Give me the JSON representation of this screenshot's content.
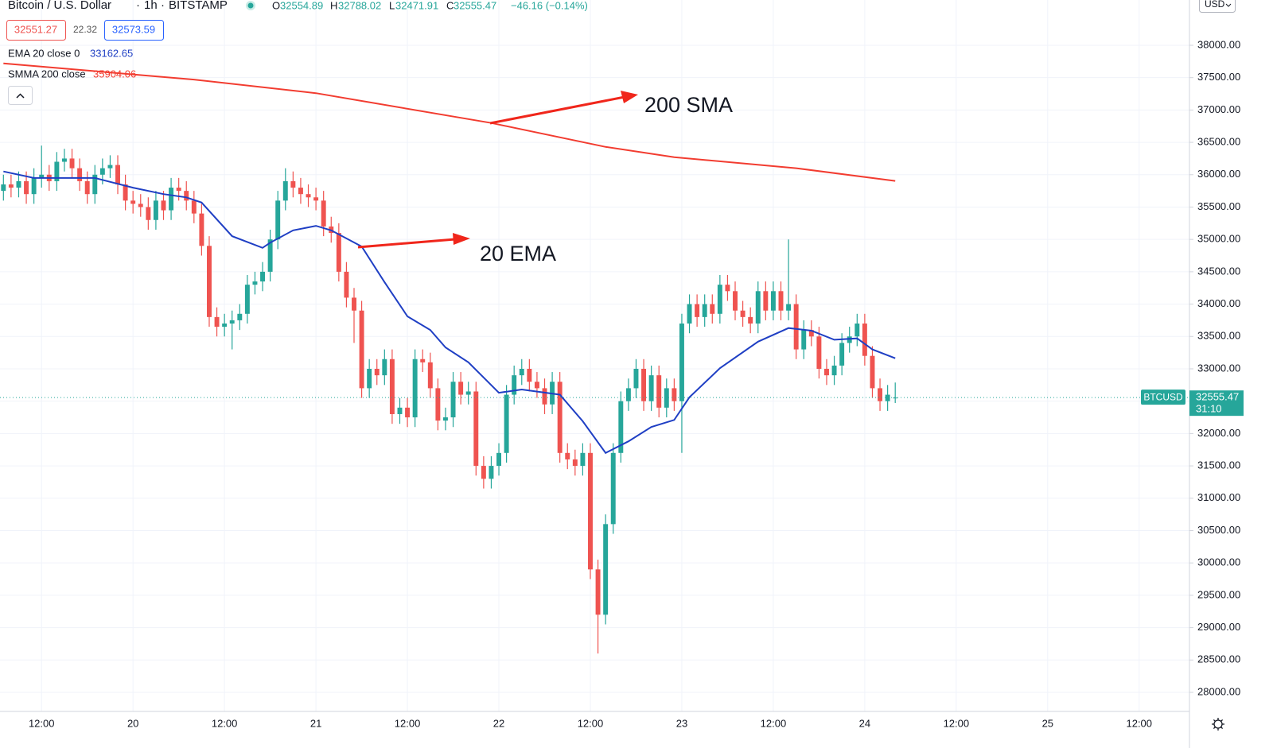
{
  "chart_data": {
    "type": "candlestick",
    "title": "Bitcoin / U.S. Dollar",
    "interval": "1h",
    "exchange": "BITSTAMP",
    "ohlc_labels": [
      "O",
      "H",
      "L",
      "C"
    ],
    "change_label": "−46.16 (−0.14%)",
    "quotes": {
      "bid": 32551.27,
      "spread": 22.32,
      "ask": 32573.59
    },
    "symbol": "BTCUSD",
    "countdown": "31:10",
    "currency": "USD",
    "up_color": "#26a69a",
    "down_color": "#ef5350",
    "open": [
      35750,
      35850,
      35800,
      35900,
      35700,
      35950,
      36000,
      35900,
      36200,
      36250,
      36100,
      35900,
      35700,
      36000,
      36100,
      36150,
      35850,
      35600,
      35550,
      35500,
      35300,
      35600,
      35450,
      35800,
      35750,
      35600,
      35400,
      34900,
      33800,
      33650,
      33700,
      33750,
      33850,
      34300,
      34350,
      34500,
      35000,
      35600,
      35900,
      35800,
      35700,
      35650,
      35600,
      35200,
      35100,
      34500,
      34100,
      33900,
      32700,
      33000,
      32900,
      33150,
      32300,
      32400,
      32250,
      33150,
      33100,
      32700,
      32200,
      32250,
      32800,
      32600,
      32650,
      31500,
      31300,
      31500,
      31700,
      32600,
      32900,
      33000,
      32800,
      32700,
      32450,
      32800,
      31700,
      31600,
      31500,
      31700,
      29900,
      29200,
      30600,
      31700,
      32500,
      32700,
      33000,
      32500,
      32900,
      32400,
      32700,
      32500,
      33700,
      34000,
      33800,
      34000,
      33850,
      34300,
      34200,
      33900,
      33800,
      33700,
      34200,
      33900,
      34200,
      33900,
      34000,
      33300,
      33600,
      33500,
      33000,
      32900,
      33050,
      33400,
      33500,
      33700,
      33200,
      32700,
      32500,
      32554.89
    ],
    "high": [
      36000,
      36000,
      36050,
      36050,
      36100,
      36450,
      36150,
      36350,
      36400,
      36400,
      36250,
      36050,
      36150,
      36250,
      36300,
      36300,
      36000,
      35750,
      35700,
      35650,
      35750,
      35750,
      35950,
      35950,
      35900,
      35750,
      35550,
      35050,
      33950,
      33850,
      33900,
      34000,
      34450,
      34500,
      34650,
      35150,
      35750,
      36100,
      36050,
      35950,
      35850,
      35800,
      35750,
      35350,
      35250,
      34650,
      34250,
      34050,
      33150,
      33150,
      33300,
      33300,
      32550,
      32550,
      33300,
      33300,
      33250,
      32850,
      32400,
      32950,
      32950,
      32800,
      32800,
      31650,
      31650,
      31850,
      32750,
      33050,
      33150,
      33150,
      32950,
      32850,
      32950,
      32950,
      31850,
      31750,
      31850,
      31850,
      30050,
      30750,
      31850,
      32650,
      32850,
      33150,
      33150,
      33050,
      33050,
      32850,
      32850,
      33850,
      34150,
      34150,
      34150,
      34150,
      34450,
      34450,
      34350,
      34050,
      33950,
      34350,
      34350,
      34350,
      34350,
      35000,
      34150,
      33750,
      33750,
      33650,
      33150,
      33200,
      33550,
      33650,
      33850,
      33850,
      33350,
      32850,
      32750,
      32788.02
    ],
    "low": [
      35600,
      35650,
      35650,
      35550,
      35550,
      35800,
      35750,
      35750,
      36050,
      35950,
      35750,
      35550,
      35550,
      35850,
      35950,
      35700,
      35450,
      35400,
      35350,
      35150,
      35150,
      35300,
      35300,
      35600,
      35450,
      35250,
      34750,
      33650,
      33500,
      33500,
      33300,
      33600,
      33700,
      34150,
      34200,
      34350,
      34850,
      35450,
      35650,
      35550,
      35500,
      35450,
      35050,
      34950,
      34350,
      33950,
      33400,
      32550,
      32550,
      32750,
      32750,
      32150,
      32150,
      32100,
      32100,
      32950,
      32550,
      32050,
      32050,
      32100,
      32450,
      32450,
      31350,
      31150,
      31150,
      31350,
      31550,
      32450,
      32750,
      32650,
      32550,
      32300,
      32300,
      31550,
      31450,
      31350,
      31350,
      29750,
      28600,
      29050,
      30450,
      31550,
      32350,
      32550,
      32350,
      32350,
      32250,
      32250,
      32350,
      31700,
      33550,
      33650,
      33650,
      33700,
      33700,
      34050,
      33750,
      33650,
      33550,
      33550,
      33750,
      33750,
      33750,
      33750,
      33150,
      33150,
      33350,
      32850,
      32750,
      32750,
      32900,
      33250,
      33350,
      33050,
      32550,
      32350,
      32350,
      32471.91
    ],
    "close": [
      35850,
      35800,
      35900,
      35700,
      35950,
      36000,
      35900,
      36200,
      36250,
      36100,
      35900,
      35700,
      36000,
      36100,
      36150,
      35850,
      35600,
      35550,
      35500,
      35300,
      35600,
      35450,
      35800,
      35750,
      35600,
      35400,
      34900,
      33800,
      33650,
      33700,
      33750,
      33850,
      34300,
      34350,
      34500,
      35000,
      35600,
      35900,
      35800,
      35700,
      35650,
      35600,
      35200,
      35100,
      34500,
      34100,
      33900,
      32700,
      33000,
      32900,
      33150,
      32300,
      32400,
      32250,
      33150,
      33100,
      32700,
      32200,
      32250,
      32800,
      32600,
      32650,
      31500,
      31300,
      31500,
      31700,
      32600,
      32900,
      33000,
      32800,
      32700,
      32450,
      32800,
      31700,
      31600,
      31500,
      31700,
      29900,
      29200,
      30600,
      31700,
      32500,
      32700,
      33000,
      32500,
      32900,
      32400,
      32700,
      32500,
      33700,
      34000,
      33800,
      34000,
      33850,
      34300,
      34200,
      33900,
      33800,
      33700,
      34200,
      33900,
      34200,
      33900,
      34000,
      33300,
      33600,
      33500,
      33000,
      32900,
      33050,
      33400,
      33500,
      33700,
      33200,
      32700,
      32500,
      32600,
      32555.47
    ],
    "indicators": [
      {
        "name": "EMA 20 close 0",
        "color": "#1f3fc4",
        "x": [
          0,
          4,
          8,
          12,
          17,
          21,
          24,
          26,
          30,
          34,
          35,
          38,
          41,
          43,
          47,
          50,
          53,
          56,
          58,
          61,
          65,
          68,
          73,
          76,
          79,
          82,
          85,
          88,
          90,
          94,
          99,
          103,
          106,
          109,
          112,
          114,
          117
        ],
        "values": [
          36050,
          35950,
          35950,
          35950,
          35800,
          35700,
          35650,
          35570,
          35050,
          34870,
          34950,
          35140,
          35210,
          35140,
          34890,
          34340,
          33810,
          33600,
          33330,
          33100,
          32630,
          32680,
          32600,
          32190,
          31700,
          31880,
          32100,
          32210,
          32560,
          33010,
          33420,
          33630,
          33590,
          33450,
          33470,
          33300,
          33162.65
        ]
      },
      {
        "name": "SMMA 200 close",
        "color": "#f23c30",
        "x": [
          0,
          25,
          41,
          64,
          79,
          88,
          104,
          117
        ],
        "values": [
          37720,
          37470,
          37260,
          36800,
          36430,
          36270,
          36100,
          35904.06
        ]
      }
    ],
    "annotations": [
      {
        "text": "200 SMA"
      },
      {
        "text": "20 EMA"
      }
    ],
    "ylim": [
      27705,
      38700
    ],
    "xlim": [
      -0.45,
      155.6
    ],
    "yticks": [
      {
        "value": 28000,
        "label": "28000.00"
      },
      {
        "value": 28500,
        "label": "28500.00"
      },
      {
        "value": 29000,
        "label": "29000.00"
      },
      {
        "value": 29500,
        "label": "29500.00"
      },
      {
        "value": 30000,
        "label": "30000.00"
      },
      {
        "value": 30500,
        "label": "30500.00"
      },
      {
        "value": 31000,
        "label": "31000.00"
      },
      {
        "value": 31500,
        "label": "31500.00"
      },
      {
        "value": 32000,
        "label": "32000.00"
      },
      {
        "value": 32500,
        "label": "32500.00"
      },
      {
        "value": 33000,
        "label": "33000.00"
      },
      {
        "value": 33500,
        "label": "33500.00"
      },
      {
        "value": 34000,
        "label": "34000.00"
      },
      {
        "value": 34500,
        "label": "34500.00"
      },
      {
        "value": 35000,
        "label": "35000.00"
      },
      {
        "value": 35500,
        "label": "35500.00"
      },
      {
        "value": 36000,
        "label": "36000.00"
      },
      {
        "value": 36500,
        "label": "36500.00"
      },
      {
        "value": 37000,
        "label": "37000.00"
      },
      {
        "value": 37500,
        "label": "37500.00"
      },
      {
        "value": 38000,
        "label": "38000.00"
      }
    ],
    "xticks": [
      {
        "value": 5,
        "label": "12:00"
      },
      {
        "value": 17,
        "label": "20"
      },
      {
        "value": 29,
        "label": "12:00"
      },
      {
        "value": 41,
        "label": "21"
      },
      {
        "value": 53,
        "label": "12:00"
      },
      {
        "value": 65,
        "label": "22"
      },
      {
        "value": 77,
        "label": "12:00"
      },
      {
        "value": 89,
        "label": "23"
      },
      {
        "value": 101,
        "label": "12:00"
      },
      {
        "value": 113,
        "label": "24"
      },
      {
        "value": 125,
        "label": "12:00"
      },
      {
        "value": 137,
        "label": "25"
      },
      {
        "value": 149,
        "label": "12:00"
      }
    ],
    "grid": true
  }
}
